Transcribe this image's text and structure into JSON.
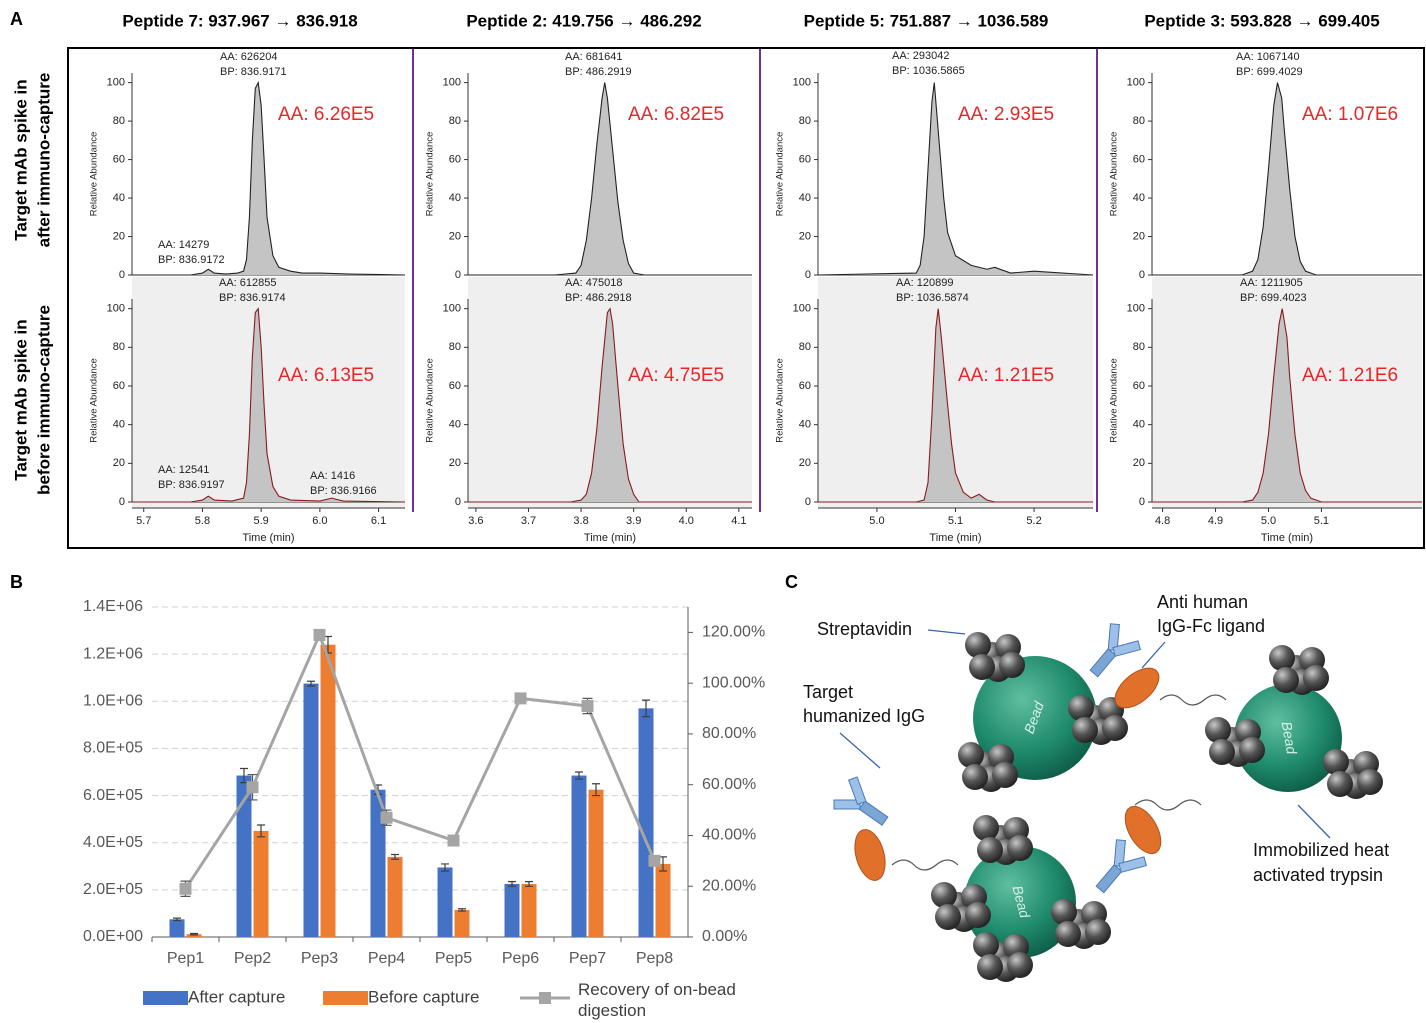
{
  "panel_labels": [
    "A",
    "B",
    "C"
  ],
  "row_labels": [
    [
      "Target mAb spike in",
      "after immuno-capture"
    ],
    [
      "Target mAb spike in",
      "before immuno-capture"
    ]
  ],
  "chart_data": [
    {
      "type": "area",
      "title": "Peptide 7: 937.967 → 836.918",
      "ylabel": "Relative Abundance",
      "color": "#222222",
      "fill": "#c4c4c4",
      "x": [
        5.68,
        5.78,
        5.8,
        5.81,
        5.82,
        5.84,
        5.86,
        5.87,
        5.875,
        5.88,
        5.885,
        5.89,
        5.895,
        5.9,
        5.905,
        5.91,
        5.92,
        5.93,
        5.95,
        5.97,
        6.0,
        6.05,
        6.145
      ],
      "values": [
        0,
        0,
        1,
        3,
        1,
        0.5,
        1,
        2,
        8,
        30,
        70,
        97,
        100,
        88,
        60,
        30,
        10,
        4,
        2,
        1,
        1,
        0.5,
        0
      ],
      "xlim": [
        5.68,
        6.145
      ],
      "ylim": [
        0,
        105
      ],
      "yticks": [
        0,
        20,
        40,
        60,
        80,
        100
      ],
      "peak_labels": [
        [
          "AA: 626204",
          "BP: 836.9171"
        ],
        [
          "AA: 14279",
          "BP: 836.9172"
        ]
      ],
      "total_label": "AA: 6.26E5"
    },
    {
      "type": "area",
      "title": "Peptide 2: 419.756 → 486.292",
      "ylabel": "Relative Abundance",
      "color": "#222222",
      "fill": "#c4c4c4",
      "x": [
        3.585,
        3.75,
        3.79,
        3.8,
        3.81,
        3.82,
        3.83,
        3.84,
        3.845,
        3.85,
        3.86,
        3.87,
        3.88,
        3.89,
        3.9,
        3.92,
        4.125
      ],
      "values": [
        0,
        0,
        1,
        5,
        18,
        40,
        68,
        92,
        100,
        92,
        65,
        38,
        18,
        6,
        1,
        0,
        0
      ],
      "xlim": [
        3.585,
        4.125
      ],
      "ylim": [
        0,
        105
      ],
      "yticks": [
        0,
        20,
        40,
        60,
        80,
        100
      ],
      "peak_labels": [
        [
          "AA: 681641",
          "BP: 486.2919"
        ]
      ],
      "total_label": "AA: 6.82E5"
    },
    {
      "type": "area",
      "title": "Peptide 5: 751.887 → 1036.589",
      "ylabel": "Relative Abundance",
      "color": "#222222",
      "fill": "#c4c4c4",
      "x": [
        4.925,
        5.05,
        5.055,
        5.06,
        5.065,
        5.07,
        5.073,
        5.078,
        5.085,
        5.09,
        5.1,
        5.12,
        5.14,
        5.15,
        5.17,
        5.2,
        5.275
      ],
      "values": [
        0,
        1,
        5,
        20,
        55,
        90,
        100,
        75,
        40,
        22,
        10,
        5,
        3,
        4,
        1,
        2,
        0
      ],
      "xlim": [
        4.925,
        5.275
      ],
      "ylim": [
        0,
        105
      ],
      "yticks": [
        0,
        20,
        40,
        60,
        80,
        100
      ],
      "peak_labels": [
        [
          "AA: 293042",
          "BP: 1036.5865"
        ]
      ],
      "total_label": "AA: 2.93E5"
    },
    {
      "type": "area",
      "title": "Peptide 3: 593.828 → 699.405",
      "ylabel": "Relative Abundance",
      "color": "#222222",
      "fill": "#c4c4c4",
      "x": [
        4.78,
        4.95,
        4.97,
        4.98,
        4.99,
        5.0,
        5.01,
        5.017,
        5.025,
        5.03,
        5.04,
        5.05,
        5.06,
        5.07,
        5.09,
        5.29
      ],
      "values": [
        0,
        0,
        2,
        8,
        25,
        55,
        88,
        100,
        92,
        75,
        45,
        20,
        7,
        2,
        0,
        0
      ],
      "xlim": [
        4.78,
        5.29
      ],
      "ylim": [
        0,
        105
      ],
      "yticks": [
        0,
        20,
        40,
        60,
        80,
        100
      ],
      "peak_labels": [
        [
          "AA: 1067140",
          "BP: 699.4029"
        ]
      ],
      "total_label": "AA: 1.07E6"
    },
    {
      "type": "area",
      "ylabel": "Relative Abundance",
      "xlabel": "Time (min)",
      "color": "#8b1a1a",
      "fill": "#c4c4c4",
      "x": [
        5.68,
        5.78,
        5.8,
        5.81,
        5.82,
        5.85,
        5.87,
        5.875,
        5.88,
        5.885,
        5.89,
        5.895,
        5.9,
        5.905,
        5.91,
        5.92,
        5.93,
        5.95,
        6.0,
        6.02,
        6.04,
        6.145
      ],
      "values": [
        0,
        0,
        1,
        3,
        1,
        0.5,
        2,
        10,
        35,
        75,
        98,
        100,
        80,
        50,
        25,
        8,
        3,
        1,
        0.5,
        2,
        0.5,
        0
      ],
      "xlim": [
        5.68,
        6.145
      ],
      "xticks": [
        5.7,
        5.8,
        5.9,
        {
          "value": 6,
          "label": "6.0"
        },
        6.1
      ],
      "ylim": [
        0,
        105
      ],
      "yticks": [
        0,
        20,
        40,
        60,
        80,
        100
      ],
      "peak_labels": [
        [
          "AA: 612855",
          "BP: 836.9174"
        ],
        [
          "AA: 12541",
          "BP: 836.9197"
        ],
        [
          "AA: 1416",
          "BP: 836.9166"
        ]
      ],
      "total_label": "AA: 6.13E5"
    },
    {
      "type": "area",
      "ylabel": "Relative Abundance",
      "xlabel": "Time (min)",
      "color": "#8b1a1a",
      "fill": "#c4c4c4",
      "x": [
        3.585,
        3.78,
        3.8,
        3.81,
        3.82,
        3.83,
        3.84,
        3.85,
        3.855,
        3.86,
        3.87,
        3.88,
        3.89,
        3.9,
        3.91,
        4.125
      ],
      "values": [
        0,
        0,
        1,
        4,
        15,
        38,
        70,
        98,
        100,
        92,
        60,
        30,
        12,
        4,
        0,
        0
      ],
      "xlim": [
        3.585,
        4.125
      ],
      "xticks": [
        3.6,
        3.7,
        3.8,
        3.9,
        {
          "value": 4,
          "label": "4.0"
        },
        4.1
      ],
      "ylim": [
        0,
        105
      ],
      "yticks": [
        0,
        20,
        40,
        60,
        80,
        100
      ],
      "peak_labels": [
        [
          "AA: 475018",
          "BP: 486.2918"
        ]
      ],
      "total_label": "AA: 4.75E5"
    },
    {
      "type": "area",
      "ylabel": "Relative Abundance",
      "xlabel": "Time (min)",
      "color": "#8b1a1a",
      "fill": "#c4c4c4",
      "x": [
        4.925,
        5.05,
        5.06,
        5.065,
        5.07,
        5.075,
        5.078,
        5.082,
        5.09,
        5.095,
        5.1,
        5.11,
        5.12,
        5.13,
        5.14,
        5.15,
        5.275
      ],
      "values": [
        0,
        0,
        1,
        10,
        45,
        90,
        100,
        85,
        50,
        30,
        15,
        5,
        2,
        4,
        1,
        0,
        0
      ],
      "xlim": [
        4.925,
        5.275
      ],
      "xticks": [
        {
          "value": 5,
          "label": "5.0"
        },
        5.1,
        5.2
      ],
      "ylim": [
        0,
        105
      ],
      "yticks": [
        0,
        20,
        40,
        60,
        80,
        100
      ],
      "peak_labels": [
        [
          "AA: 120899",
          "BP: 1036.5874"
        ]
      ],
      "total_label": "AA: 1.21E5"
    },
    {
      "type": "area",
      "ylabel": "Relative Abundance",
      "xlabel": "Time (min)",
      "color": "#8b1a1a",
      "fill": "#c4c4c4",
      "x": [
        4.78,
        4.95,
        4.97,
        4.98,
        4.99,
        5.0,
        5.01,
        5.02,
        5.026,
        5.035,
        5.04,
        5.05,
        5.06,
        5.07,
        5.08,
        5.1,
        5.29
      ],
      "values": [
        0,
        0,
        1,
        5,
        15,
        35,
        65,
        92,
        100,
        85,
        65,
        35,
        15,
        6,
        2,
        0,
        0
      ],
      "xlim": [
        4.78,
        5.29
      ],
      "xticks": [
        4.8,
        4.9,
        {
          "value": 5,
          "label": "5.0"
        },
        5.1
      ],
      "ylim": [
        0,
        105
      ],
      "yticks": [
        0,
        20,
        40,
        60,
        80,
        100
      ],
      "peak_labels": [
        [
          "AA: 1211905",
          "BP: 699.4023"
        ]
      ],
      "total_label": "AA: 1.21E6"
    },
    {
      "type": "bar",
      "categories": [
        "Pep1",
        "Pep2",
        "Pep3",
        "Pep4",
        "Pep5",
        "Pep6",
        "Pep7",
        "Pep8"
      ],
      "series": [
        {
          "name": "After capture",
          "color": "#4472c4",
          "values": [
            75000,
            685000,
            1075000,
            625000,
            295000,
            225000,
            685000,
            970000
          ],
          "errors": [
            5000,
            30000,
            10000,
            20000,
            15000,
            10000,
            15000,
            35000
          ]
        },
        {
          "name": "Before capture",
          "color": "#ed7d31",
          "values": [
            12000,
            450000,
            1240000,
            340000,
            115000,
            225000,
            625000,
            310000
          ],
          "errors": [
            3000,
            25000,
            35000,
            10000,
            5000,
            10000,
            25000,
            30000
          ]
        },
        {
          "name": "Recovery of on-bead digestion",
          "type": "line",
          "axis": "y2",
          "color": "#a5a5a5",
          "values": [
            19,
            59,
            119,
            47,
            38,
            94,
            91,
            30
          ],
          "errors": [
            3,
            5,
            2,
            3,
            2,
            2,
            3,
            2
          ]
        }
      ],
      "ylim": [
        0,
        1400000
      ],
      "yticks": [
        {
          "value": 0,
          "label": "0.0E+00"
        },
        {
          "value": 200000,
          "label": "2.0E+05"
        },
        {
          "value": 400000,
          "label": "4.0E+05"
        },
        {
          "value": 600000,
          "label": "6.0E+05"
        },
        {
          "value": 800000,
          "label": "8.0E+05"
        },
        {
          "value": 1000000,
          "label": "1.0E+06"
        },
        {
          "value": 1200000,
          "label": "1.2E+06"
        },
        {
          "value": 1400000,
          "label": "1.4E+06"
        }
      ],
      "y2lim": [
        0,
        130
      ],
      "y2ticks": [
        {
          "value": 0,
          "label": "0.00%"
        },
        {
          "value": 20,
          "label": "20.00%"
        },
        {
          "value": 40,
          "label": "40.00%"
        },
        {
          "value": 60,
          "label": "60.00%"
        },
        {
          "value": 80,
          "label": "80.00%"
        },
        {
          "value": 100,
          "label": "100.00%"
        },
        {
          "value": 120,
          "label": "120.00%"
        }
      ],
      "grid": true,
      "legend": "bottom"
    }
  ],
  "diagram": {
    "labels": [
      [
        "Streptavidin"
      ],
      [
        "Anti human",
        "IgG-Fc ligand"
      ],
      [
        "Target",
        "humanized IgG"
      ],
      [
        "Immobilized heat",
        "activated trypsin"
      ]
    ],
    "beads": [
      "Bead",
      "Bead",
      "Bead"
    ]
  }
}
